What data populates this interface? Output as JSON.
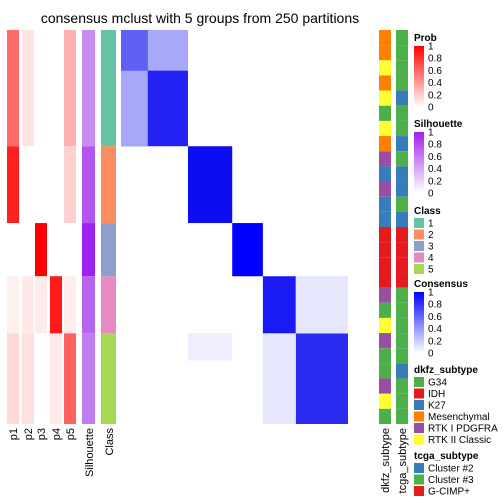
{
  "chart_data": {
    "type": "heatmap",
    "title": "consensus mclust with 5 groups from 250 partitions",
    "columns_left": [
      "p1",
      "p2",
      "p3",
      "p4",
      "p5",
      "Silhouette",
      "Class"
    ],
    "columns_right": [
      "dkfz_subtype",
      "tcga_subtype"
    ],
    "class_groups": [
      {
        "class": "1",
        "fraction": 0.295
      },
      {
        "class": "2",
        "fraction": 0.195
      },
      {
        "class": "3",
        "fraction": 0.135
      },
      {
        "class": "4",
        "fraction": 0.145
      },
      {
        "class": "5",
        "fraction": 0.23
      }
    ],
    "legends": [
      {
        "title": "Prob",
        "type": "gradient",
        "colors": [
          "#ffffff",
          "#ff0000"
        ],
        "ticks": [
          "1",
          "0.8",
          "0.6",
          "0.4",
          "0.2",
          "0"
        ]
      },
      {
        "title": "Silhouette",
        "type": "gradient",
        "colors": [
          "#ffffff",
          "#a020f0"
        ],
        "ticks": [
          "1",
          "0.8",
          "0.6",
          "0.4",
          "0.2",
          "0"
        ]
      },
      {
        "title": "Class",
        "type": "discrete",
        "items": [
          {
            "label": "1",
            "color": "#66c2a5"
          },
          {
            "label": "2",
            "color": "#fc8d62"
          },
          {
            "label": "3",
            "color": "#8da0cb"
          },
          {
            "label": "4",
            "color": "#e78ac3"
          },
          {
            "label": "5",
            "color": "#a6d854"
          }
        ]
      },
      {
        "title": "Consensus",
        "type": "gradient",
        "colors": [
          "#ffffff",
          "#0000ff"
        ],
        "ticks": [
          "1",
          "0.8",
          "0.6",
          "0.4",
          "0.2",
          "0"
        ]
      },
      {
        "title": "dkfz_subtype",
        "type": "discrete",
        "items": [
          {
            "label": "G34",
            "color": "#4daf4a"
          },
          {
            "label": "IDH",
            "color": "#e41a1c"
          },
          {
            "label": "K27",
            "color": "#377eb8"
          },
          {
            "label": "Mesenchymal",
            "color": "#ff7f00"
          },
          {
            "label": "RTK I PDGFRA",
            "color": "#984ea3"
          },
          {
            "label": "RTK II Classic",
            "color": "#ffff33"
          }
        ]
      },
      {
        "title": "tcga_subtype",
        "type": "discrete",
        "items": [
          {
            "label": "Cluster #2",
            "color": "#377eb8"
          },
          {
            "label": "Cluster #3",
            "color": "#4daf4a"
          },
          {
            "label": "G-CIMP+",
            "color": "#e41a1c"
          }
        ]
      }
    ]
  }
}
